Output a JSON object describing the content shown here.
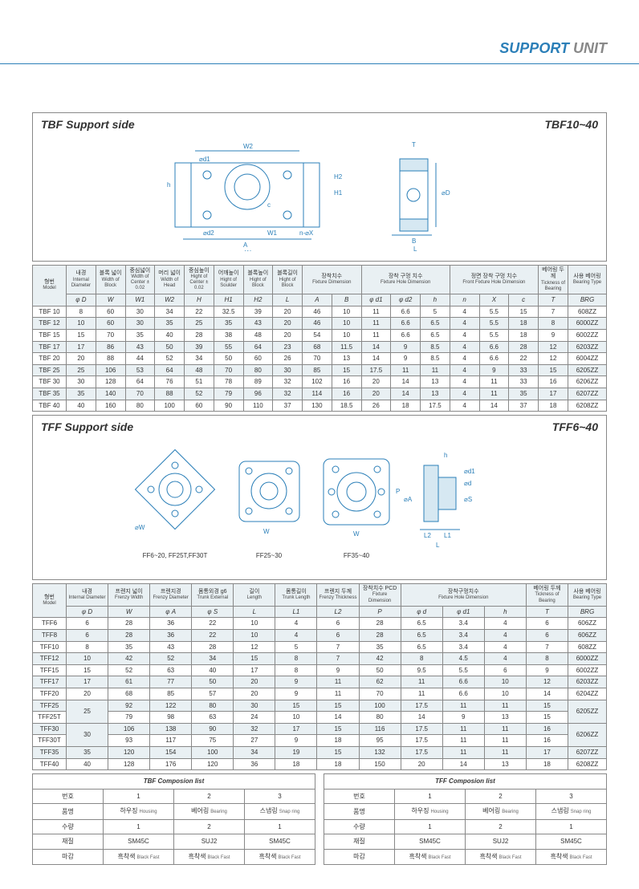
{
  "header": {
    "support": "SUPPORT",
    "unit": "UNIT"
  },
  "tbf": {
    "title": "TBF Support side",
    "model": "TBF10~40",
    "headers": {
      "model": {
        "ko": "형번",
        "en": "Model"
      },
      "id": {
        "ko": "내경",
        "en": "Internal Diameter",
        "sym": "φ D"
      },
      "bw": {
        "ko": "블록 넓이",
        "en": "Width of Block",
        "sym": "W"
      },
      "cw": {
        "ko": "중심넓이",
        "en": "Width of Center ± 0.02",
        "sym": "W1"
      },
      "hw": {
        "ko": "머리 넓이",
        "en": "Width of Head",
        "sym": "W2"
      },
      "ch": {
        "ko": "중심높이",
        "en": "Hight of Center ± 0.02",
        "sym": "H"
      },
      "sh": {
        "ko": "어깨높이",
        "en": "Hight of Soulder",
        "sym": "H1"
      },
      "bh": {
        "ko": "블록높이",
        "en": "Hight of Block",
        "sym": "H2"
      },
      "bl": {
        "ko": "블록길이",
        "en": "Hight of Block",
        "sym": "L"
      },
      "fd": {
        "ko": "장착치수",
        "en": "Fixture Dimension"
      },
      "fhd": {
        "ko": "장착 구멍 치수",
        "en": "Fixture Hole Dimension"
      },
      "ffhd": {
        "ko": "정면 장착 구멍 치수",
        "en": "Front Fixture Hole Dimension"
      },
      "bt": {
        "ko": "베어링 두께",
        "en": "Tickness of Bearing",
        "sym": "T"
      },
      "brg": {
        "ko": "사용 베어링",
        "en": "Bearing Type",
        "sym": "BRG"
      }
    },
    "sub": {
      "A": "A",
      "B": "B",
      "d1": "φ d1",
      "d2": "φ d2",
      "h": "h",
      "n": "n",
      "X": "X",
      "c": "c"
    },
    "rows": [
      [
        "TBF 10",
        "8",
        "60",
        "30",
        "34",
        "22",
        "32.5",
        "39",
        "20",
        "46",
        "10",
        "11",
        "6.6",
        "5",
        "4",
        "5.5",
        "15",
        "7",
        "608ZZ"
      ],
      [
        "TBF 12",
        "10",
        "60",
        "30",
        "35",
        "25",
        "35",
        "43",
        "20",
        "46",
        "10",
        "11",
        "6.6",
        "6.5",
        "4",
        "5.5",
        "18",
        "8",
        "6000ZZ"
      ],
      [
        "TBF 15",
        "15",
        "70",
        "35",
        "40",
        "28",
        "38",
        "48",
        "20",
        "54",
        "10",
        "11",
        "6.6",
        "6.5",
        "4",
        "5.5",
        "18",
        "9",
        "6002ZZ"
      ],
      [
        "TBF 17",
        "17",
        "86",
        "43",
        "50",
        "39",
        "55",
        "64",
        "23",
        "68",
        "11.5",
        "14",
        "9",
        "8.5",
        "4",
        "6.6",
        "28",
        "12",
        "6203ZZ"
      ],
      [
        "TBF 20",
        "20",
        "88",
        "44",
        "52",
        "34",
        "50",
        "60",
        "26",
        "70",
        "13",
        "14",
        "9",
        "8.5",
        "4",
        "6.6",
        "22",
        "12",
        "6004ZZ"
      ],
      [
        "TBF 25",
        "25",
        "106",
        "53",
        "64",
        "48",
        "70",
        "80",
        "30",
        "85",
        "15",
        "17.5",
        "11",
        "11",
        "4",
        "9",
        "33",
        "15",
        "6205ZZ"
      ],
      [
        "TBF 30",
        "30",
        "128",
        "64",
        "76",
        "51",
        "78",
        "89",
        "32",
        "102",
        "16",
        "20",
        "14",
        "13",
        "4",
        "11",
        "33",
        "16",
        "6206ZZ"
      ],
      [
        "TBF 35",
        "35",
        "140",
        "70",
        "88",
        "52",
        "79",
        "96",
        "32",
        "114",
        "16",
        "20",
        "14",
        "13",
        "4",
        "11",
        "35",
        "17",
        "6207ZZ"
      ],
      [
        "TBF 40",
        "40",
        "160",
        "80",
        "100",
        "60",
        "90",
        "110",
        "37",
        "130",
        "18.5",
        "26",
        "18",
        "17.5",
        "4",
        "14",
        "37",
        "18",
        "6208ZZ"
      ]
    ]
  },
  "tff": {
    "title": "TFF Support side",
    "model": "TFF6~40",
    "diag_labels": {
      "a": "FF6~20, FF25T,FF30T",
      "b": "FF25~30",
      "c": "FF35~40"
    },
    "headers": {
      "model": {
        "ko": "형번",
        "en": "Model"
      },
      "id": {
        "ko": "내경",
        "en": "Internal Diameter",
        "sym": "φ D"
      },
      "fw": {
        "ko": "프렌지 넓이",
        "en": "Frenzy Width",
        "sym": "W"
      },
      "fd": {
        "ko": "프렌지경",
        "en": "Frenzy Diameter",
        "sym": "φ A"
      },
      "te": {
        "ko": "몸통외경 g6",
        "en": "Trunk External",
        "sym": "φ S"
      },
      "len": {
        "ko": "길이",
        "en": "Length",
        "sym": "L"
      },
      "tl": {
        "ko": "몸통길이",
        "en": "Trunk Length",
        "sym": "L1"
      },
      "ft": {
        "ko": "프렌지 두께",
        "en": "Frenzy Thickness",
        "sym": "L2"
      },
      "pcd": {
        "ko": "장착치수 PCD",
        "en": "Fixture Dimension",
        "sym": "P"
      },
      "fhd": {
        "ko": "장착구멍치수",
        "en": "Fixture Hole Dimension"
      },
      "bt": {
        "ko": "베어링 두께",
        "en": "Tickness of Bearing",
        "sym": "T"
      },
      "brg": {
        "ko": "사용 베어링",
        "en": "Bearing Type",
        "sym": "BRG"
      }
    },
    "sub": {
      "d": "φ d",
      "d1": "φ d1",
      "h": "h"
    },
    "rows": [
      [
        "TFF6",
        "6",
        "28",
        "36",
        "22",
        "10",
        "4",
        "6",
        "28",
        "6.5",
        "3.4",
        "4",
        "6",
        "606ZZ"
      ],
      [
        "TFF8",
        "6",
        "28",
        "36",
        "22",
        "10",
        "4",
        "6",
        "28",
        "6.5",
        "3.4",
        "4",
        "6",
        "606ZZ"
      ],
      [
        "TFF10",
        "8",
        "35",
        "43",
        "28",
        "12",
        "5",
        "7",
        "35",
        "6.5",
        "3.4",
        "4",
        "7",
        "608ZZ"
      ],
      [
        "TFF12",
        "10",
        "42",
        "52",
        "34",
        "15",
        "8",
        "7",
        "42",
        "8",
        "4.5",
        "4",
        "8",
        "6000ZZ"
      ],
      [
        "TFF15",
        "15",
        "52",
        "63",
        "40",
        "17",
        "8",
        "9",
        "50",
        "9.5",
        "5.5",
        "6",
        "9",
        "6002ZZ"
      ],
      [
        "TFF17",
        "17",
        "61",
        "77",
        "50",
        "20",
        "9",
        "11",
        "62",
        "11",
        "6.6",
        "10",
        "12",
        "6203ZZ"
      ],
      [
        "TFF20",
        "20",
        "68",
        "85",
        "57",
        "20",
        "9",
        "11",
        "70",
        "11",
        "6.6",
        "10",
        "14",
        "6204ZZ"
      ],
      [
        "TFF25",
        null,
        "92",
        "122",
        "80",
        "30",
        "15",
        "15",
        "100",
        "17.5",
        "11",
        "11",
        "15",
        null
      ],
      [
        "TFF25T",
        null,
        "79",
        "98",
        "63",
        "24",
        "10",
        "14",
        "80",
        "14",
        "9",
        "13",
        "15",
        null
      ],
      [
        "TFF30",
        null,
        "106",
        "138",
        "90",
        "32",
        "17",
        "15",
        "116",
        "17.5",
        "11",
        "11",
        "16",
        null
      ],
      [
        "TFF30T",
        null,
        "93",
        "117",
        "75",
        "27",
        "9",
        "18",
        "95",
        "17.5",
        "11",
        "11",
        "16",
        null
      ],
      [
        "TFF35",
        "35",
        "120",
        "154",
        "100",
        "34",
        "19",
        "15",
        "132",
        "17.5",
        "11",
        "11",
        "17",
        "6207ZZ"
      ],
      [
        "TFF40",
        "40",
        "128",
        "176",
        "120",
        "36",
        "18",
        "18",
        "150",
        "20",
        "14",
        "13",
        "18",
        "6208ZZ"
      ]
    ],
    "merges": {
      "d25": "25",
      "d30": "30",
      "b25": "6205ZZ",
      "b30": "6206ZZ"
    }
  },
  "comp": {
    "tbf_title": "TBF Composion list",
    "tff_title": "TFF Composion list",
    "labels": {
      "no": "번호",
      "name": "품명",
      "qty": "수량",
      "mat": "재질",
      "fin": "마감"
    },
    "cols": [
      "1",
      "2",
      "3"
    ],
    "name": [
      [
        "하우징",
        "Housing"
      ],
      [
        "베어링",
        "Bearing"
      ],
      [
        "스냅링",
        "Snap ring"
      ]
    ],
    "qty": [
      "1",
      "2",
      "1"
    ],
    "mat": [
      "SM45C",
      "SUJ2",
      "SM45C"
    ],
    "fin": [
      [
        "흑착색",
        "Black Fast"
      ],
      [
        "흑착색",
        "Black Fast"
      ],
      [
        "흑착색",
        "Black Fast"
      ]
    ]
  },
  "colors": {
    "line": "#2b7fb8",
    "hatch": "#9fcbe6",
    "bg": "#e9f0f3"
  }
}
